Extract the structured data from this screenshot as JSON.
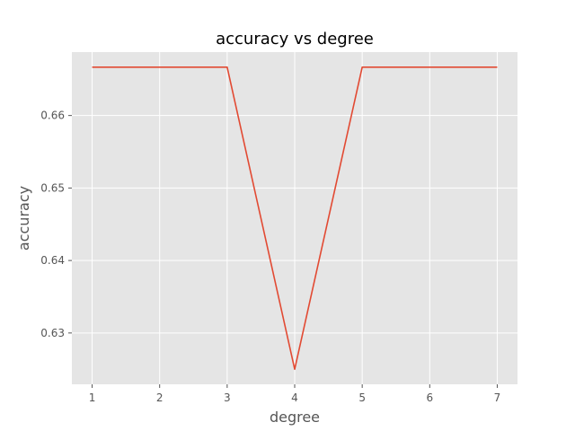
{
  "chart_data": {
    "type": "line",
    "title": "accuracy vs degree",
    "xlabel": "degree",
    "ylabel": "accuracy",
    "x": [
      1,
      2,
      3,
      4,
      5,
      6,
      7
    ],
    "series": [
      {
        "values": [
          0.66667,
          0.66667,
          0.66667,
          0.625,
          0.66667,
          0.66667,
          0.66667
        ],
        "color": "#E24A33"
      }
    ],
    "xlim": [
      0.7,
      7.3
    ],
    "ylim": [
      0.62292,
      0.66875
    ],
    "xticks": [
      1,
      2,
      3,
      4,
      5,
      6,
      7
    ],
    "xtick_labels": [
      "1",
      "2",
      "3",
      "4",
      "5",
      "6",
      "7"
    ],
    "yticks": [
      0.63,
      0.64,
      0.65,
      0.66
    ],
    "ytick_labels": [
      "0.63",
      "0.64",
      "0.65",
      "0.66"
    ],
    "grid": true,
    "background": "#E5E5E5",
    "grid_color": "#FFFFFF",
    "text_color": "#555555"
  }
}
